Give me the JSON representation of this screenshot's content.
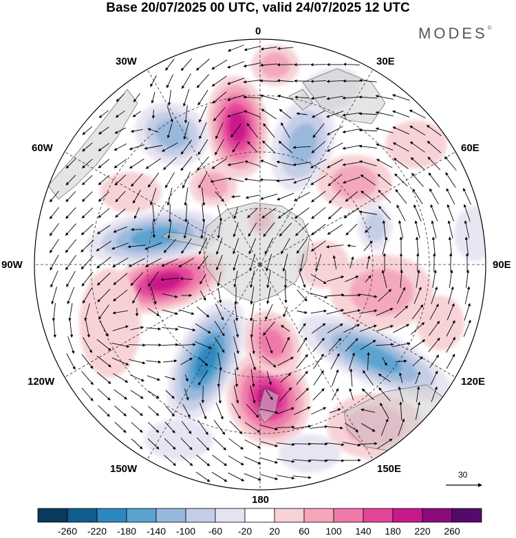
{
  "title": "Base 20/07/2025 00 UTC, valid 24/07/2025 12 UTC",
  "brand": "MODES",
  "brand_mark": "©",
  "lon_labels": {
    "n": "0",
    "ne": "30E",
    "e1": "60E",
    "e": "90E",
    "e2": "120E",
    "se": "150E",
    "s": "180",
    "sw": "150W",
    "w2": "120W",
    "w": "90W",
    "w1": "60W",
    "nw": "30W"
  },
  "vector_reference": "30",
  "colorbar": {
    "labels": [
      "-260",
      "-220",
      "-180",
      "-140",
      "-100",
      "-60",
      "-20",
      "20",
      "60",
      "100",
      "140",
      "180",
      "220",
      "260"
    ],
    "colors": [
      "#0a3a5c",
      "#115d8c",
      "#2f87c0",
      "#5aa2d0",
      "#97b8dc",
      "#c4cde6",
      "#e7e4f2",
      "#ffffff",
      "#f7d1d6",
      "#f4a6bb",
      "#ef78aa",
      "#e34598",
      "#c7198a",
      "#8d0b7d",
      "#540a6b"
    ]
  },
  "map": {
    "field": "height anomaly with wind vectors",
    "land_color": "#d4d4d4",
    "grid_color": "#333333"
  }
}
